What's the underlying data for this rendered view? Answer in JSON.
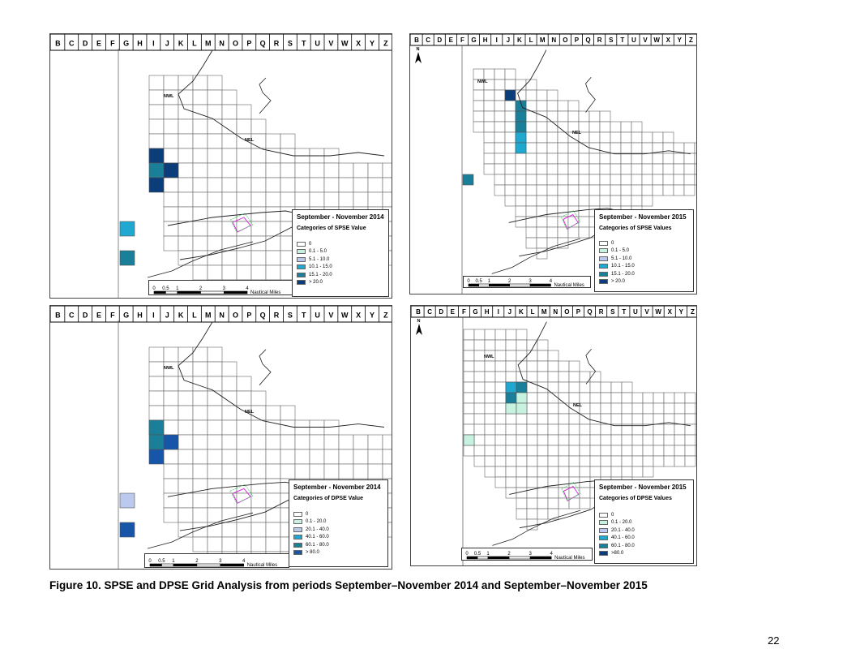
{
  "panels": [
    {
      "id": "p1",
      "letters": [
        "B",
        "C",
        "D",
        "E",
        "F",
        "G",
        "H",
        "I",
        "J",
        "K",
        "L",
        "M",
        "N",
        "O",
        "P",
        "Q",
        "R",
        "S",
        "T",
        "U",
        "V",
        "W",
        "X",
        "Y",
        "Z"
      ],
      "nwl": "NWL",
      "nel": "NEL",
      "legend_title": "September - November 2014",
      "legend_subtitle": "Categories of SPSE Value",
      "categories": [
        {
          "label": "0",
          "color": "#ffffff"
        },
        {
          "label": "0.1 - 5.0",
          "color": "#c7f2df"
        },
        {
          "label": "5.1 - 10.0",
          "color": "#bcc9ee"
        },
        {
          "label": "10.1 - 15.0",
          "color": "#1fa8d0"
        },
        {
          "label": "15.1 - 20.0",
          "color": "#1a7f98"
        },
        {
          "label": "> 20.0",
          "color": "#0b3d7a"
        }
      ],
      "scale_ticks": [
        "0",
        "0.5",
        "1",
        "2",
        "3",
        "4"
      ],
      "scale_unit": "Nautical Miles",
      "north": ""
    },
    {
      "id": "p2",
      "letters": [
        "B",
        "C",
        "D",
        "E",
        "F",
        "G",
        "H",
        "I",
        "J",
        "K",
        "L",
        "M",
        "N",
        "O",
        "P",
        "Q",
        "R",
        "S",
        "T",
        "U",
        "V",
        "W",
        "X",
        "Y",
        "Z"
      ],
      "nwl": "NWL",
      "nel": "NEL",
      "legend_title": "September - November 2015",
      "legend_subtitle": "Categories of SPSE Values",
      "categories": [
        {
          "label": "0",
          "color": "#ffffff"
        },
        {
          "label": "0.1 - 5.0",
          "color": "#c7f2df"
        },
        {
          "label": "5.1 - 10.0",
          "color": "#bcc9ee"
        },
        {
          "label": "10.1 - 15.0",
          "color": "#1fa8d0"
        },
        {
          "label": "15.1 - 20.0",
          "color": "#1a7f98"
        },
        {
          "label": "> 20.0",
          "color": "#0b3d7a"
        }
      ],
      "scale_ticks": [
        "0",
        "0.5",
        "1",
        "2",
        "3",
        "4"
      ],
      "scale_unit": "Nautical Miles",
      "north": "N"
    },
    {
      "id": "p3",
      "letters": [
        "B",
        "C",
        "D",
        "E",
        "F",
        "G",
        "H",
        "I",
        "J",
        "K",
        "L",
        "M",
        "N",
        "O",
        "P",
        "Q",
        "R",
        "S",
        "T",
        "U",
        "V",
        "W",
        "X",
        "Y",
        "Z"
      ],
      "nwl": "NWL",
      "nel": "NEL",
      "legend_title": "September - November 2014",
      "legend_subtitle": "Categories of DPSE Value",
      "categories": [
        {
          "label": "0",
          "color": "#ffffff"
        },
        {
          "label": "0.1 - 20.0",
          "color": "#c7f2df"
        },
        {
          "label": "20.1 - 40.0",
          "color": "#bcc9ee"
        },
        {
          "label": "40.1 - 60.0",
          "color": "#1fa8d0"
        },
        {
          "label": "60.1 - 80.0",
          "color": "#1a7f98"
        },
        {
          "label": "> 80.0",
          "color": "#1655a8"
        }
      ],
      "scale_ticks": [
        "0",
        "0.5",
        "1",
        "2",
        "3",
        "4"
      ],
      "scale_unit": "Nautical Miles",
      "north": ""
    },
    {
      "id": "p4",
      "letters": [
        "B",
        "C",
        "D",
        "E",
        "F",
        "G",
        "H",
        "I",
        "J",
        "K",
        "L",
        "M",
        "N",
        "O",
        "P",
        "Q",
        "R",
        "S",
        "T",
        "U",
        "V",
        "W",
        "X",
        "Y",
        "Z"
      ],
      "nwl": "NWL",
      "nel": "NEL",
      "legend_title": "September - November 2015",
      "legend_subtitle": "Categories of DPSE Values",
      "categories": [
        {
          "label": "0",
          "color": "#ffffff"
        },
        {
          "label": "0.1 - 20.0",
          "color": "#c7f2df"
        },
        {
          "label": "20.1 - 40.0",
          "color": "#bcc9ee"
        },
        {
          "label": "40.1 - 60.0",
          "color": "#1fa8d0"
        },
        {
          "label": "60.1 - 80.0",
          "color": "#1a7f98"
        },
        {
          "label": ">80.0",
          "color": "#0b3d7a"
        }
      ],
      "scale_ticks": [
        "0",
        "0.5",
        "1",
        "2",
        "3",
        "4"
      ],
      "scale_unit": "Nautical Miles",
      "north": "N"
    }
  ],
  "caption": "Figure 10.  SPSE and DPSE Grid Analysis from periods September–November 2014 and September–November 2015",
  "page_number": "22"
}
